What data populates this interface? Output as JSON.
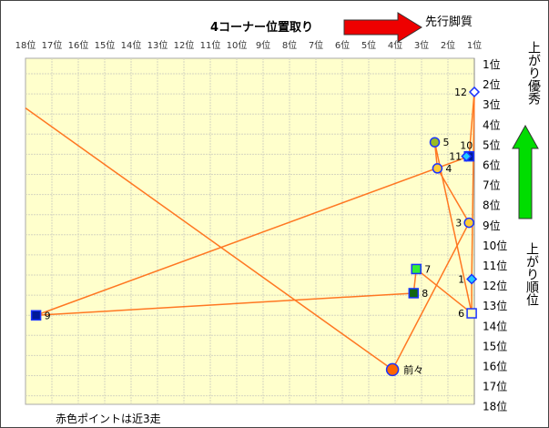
{
  "chart_data": {
    "type": "scatter",
    "title": "4コーナー位置取り",
    "x_axis_label_arrow": "先行脚質",
    "y_axis_label_top": "上がり優秀",
    "y_axis_label_bottom": "上がり順位",
    "footnote": "赤色ポイントは近3走",
    "x_ticks": [
      "18位",
      "17位",
      "16位",
      "15位",
      "14位",
      "13位",
      "12位",
      "11位",
      "10位",
      "9位",
      "8位",
      "7位",
      "6位",
      "5位",
      "4位",
      "3位",
      "2位",
      "1位"
    ],
    "y_ticks": [
      "1位",
      "2位",
      "3位",
      "4位",
      "5位",
      "6位",
      "7位",
      "8位",
      "9位",
      "10位",
      "11位",
      "12位",
      "13位",
      "14位",
      "15位",
      "16位",
      "17位",
      "18位"
    ],
    "xlim": [
      18,
      1
    ],
    "ylim": [
      1,
      18
    ],
    "grid": true,
    "colors": {
      "plot_bg": "#ffffcc",
      "line": "#ff7722",
      "marker_border": "#1a33ff",
      "arrow_red": "#ee0000",
      "arrow_green": "#00dd00"
    },
    "points": [
      {
        "label": "12",
        "x": 1.0,
        "y": 2.4,
        "shape": "diamond",
        "color": "#ffffff"
      },
      {
        "label": "5",
        "x": 2.5,
        "y": 4.9,
        "shape": "circle",
        "color": "#99bb22"
      },
      {
        "label": "11",
        "x": 1.2,
        "y": 5.6,
        "shape": "square",
        "color": "#001a99"
      },
      {
        "label": "10",
        "x": 1.3,
        "y": 5.6,
        "shape": "diamond",
        "color": "#22ccff"
      },
      {
        "label": "4",
        "x": 2.4,
        "y": 6.2,
        "shape": "circle",
        "color": "#ffcc33"
      },
      {
        "label": "3",
        "x": 1.2,
        "y": 8.9,
        "shape": "circle",
        "color": "#ffcc33"
      },
      {
        "label": "7",
        "x": 3.2,
        "y": 11.2,
        "shape": "square",
        "color": "#33ee33"
      },
      {
        "label": "1",
        "x": 1.1,
        "y": 11.7,
        "shape": "diamond",
        "color": "#22ccff"
      },
      {
        "label": "8",
        "x": 3.3,
        "y": 12.4,
        "shape": "square",
        "color": "#116611"
      },
      {
        "label": "6",
        "x": 1.1,
        "y": 13.4,
        "shape": "square",
        "color": "#ffffbb"
      },
      {
        "label": "9",
        "x": 17.6,
        "y": 13.5,
        "shape": "square",
        "color": "#001a99"
      },
      {
        "label": "前々",
        "x": 4.1,
        "y": 16.2,
        "shape": "circle-large",
        "color": "#ff6600"
      }
    ],
    "segments": [
      [
        [
          18,
          3.2
        ],
        [
          4.1,
          16.2
        ]
      ],
      [
        [
          4.1,
          16.2
        ],
        [
          1.2,
          8.9
        ]
      ],
      [
        [
          1.2,
          8.9
        ],
        [
          2.4,
          6.2
        ]
      ],
      [
        [
          2.4,
          6.2
        ],
        [
          2.5,
          4.9
        ]
      ],
      [
        [
          2.5,
          4.9
        ],
        [
          1.1,
          13.4
        ]
      ],
      [
        [
          17.6,
          13.5
        ],
        [
          1.2,
          5.6
        ]
      ],
      [
        [
          17.6,
          13.5
        ],
        [
          3.3,
          12.4
        ]
      ],
      [
        [
          3.3,
          12.4
        ],
        [
          3.2,
          11.2
        ]
      ],
      [
        [
          3.2,
          11.2
        ],
        [
          1.1,
          13.4
        ]
      ],
      [
        [
          1.1,
          13.4
        ],
        [
          1.1,
          11.7
        ]
      ],
      [
        [
          1.1,
          11.7
        ],
        [
          1.0,
          2.4
        ]
      ],
      [
        [
          1.0,
          2.4
        ],
        [
          1.2,
          5.6
        ]
      ]
    ]
  }
}
